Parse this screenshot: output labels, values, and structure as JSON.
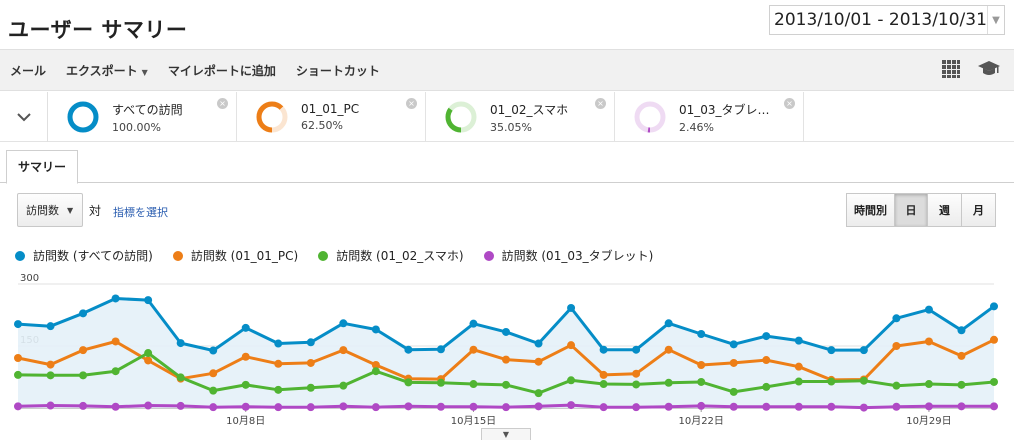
{
  "page": {
    "title": "ユーザー サマリー",
    "date_range": "2013/10/01 - 2013/10/31"
  },
  "toolbar": {
    "email": "メール",
    "export": "エクスポート",
    "add_to_dashboard": "マイレポートに追加",
    "shortcut": "ショートカット",
    "icons": [
      "grid-icon",
      "graduation-cap-icon"
    ]
  },
  "segments": [
    {
      "name": "すべての訪問",
      "percent": "100.00%",
      "color": "#058dc7",
      "ring_fill": 1.0
    },
    {
      "name": "01_01_PC",
      "percent": "62.50%",
      "color": "#ed7e17",
      "ring_fill": 0.625
    },
    {
      "name": "01_02_スマホ",
      "percent": "35.05%",
      "color": "#50b432",
      "ring_fill": 0.3505
    },
    {
      "name": "01_03_タブレ…",
      "percent": "2.46%",
      "color": "#af49c5",
      "ring_fill": 0.0246
    }
  ],
  "tabs": {
    "summary": "サマリー"
  },
  "controls": {
    "metric_select": "訪問数",
    "vs": "対",
    "pick_metric": "指標を選択",
    "granularity": [
      "時間別",
      "日",
      "週",
      "月"
    ],
    "granularity_active": "日"
  },
  "legend": [
    {
      "label": "訪問数 (すべての訪問)",
      "color": "#058dc7"
    },
    {
      "label": "訪問数 (01_01_PC)",
      "color": "#ed7e17"
    },
    {
      "label": "訪問数 (01_02_スマホ)",
      "color": "#50b432"
    },
    {
      "label": "訪問数 (01_03_タブレット)",
      "color": "#af49c5"
    }
  ],
  "chart_data": {
    "type": "line",
    "x": [
      "10/1",
      "10/2",
      "10/3",
      "10/4",
      "10/5",
      "10/6",
      "10/7",
      "10/8",
      "10/9",
      "10/10",
      "10/11",
      "10/12",
      "10/13",
      "10/14",
      "10/15",
      "10/16",
      "10/17",
      "10/18",
      "10/19",
      "10/20",
      "10/21",
      "10/22",
      "10/23",
      "10/24",
      "10/25",
      "10/26",
      "10/27",
      "10/28",
      "10/29",
      "10/30",
      "10/31"
    ],
    "x_tick_labels": [
      {
        "label": "10月8日",
        "index": 7
      },
      {
        "label": "10月15日",
        "index": 14
      },
      {
        "label": "10月22日",
        "index": 21
      },
      {
        "label": "10月29日",
        "index": 28
      }
    ],
    "y_tick_labels": [
      "300",
      "150"
    ],
    "ylim": [
      0,
      300
    ],
    "series": [
      {
        "name": "訪問数 (すべての訪問)",
        "color": "#058dc7",
        "area": true,
        "values": [
          203,
          198,
          229,
          265,
          261,
          157,
          139,
          194,
          156,
          159,
          205,
          190,
          141,
          142,
          204,
          184,
          156,
          242,
          141,
          141,
          205,
          179,
          154,
          174,
          163,
          140,
          140,
          217,
          238,
          188,
          246
        ]
      },
      {
        "name": "訪問数 (01_01_PC)",
        "color": "#ed7e17",
        "values": [
          121,
          105,
          140,
          161,
          115,
          71,
          84,
          124,
          107,
          109,
          140,
          104,
          71,
          70,
          141,
          117,
          112,
          152,
          80,
          83,
          141,
          104,
          109,
          116,
          100,
          68,
          69,
          150,
          161,
          126,
          165
        ]
      },
      {
        "name": "訪問数 (01_02_スマホ)",
        "color": "#50b432",
        "values": [
          80,
          79,
          79,
          89,
          133,
          74,
          42,
          56,
          44,
          49,
          54,
          89,
          62,
          61,
          58,
          56,
          36,
          67,
          58,
          57,
          61,
          63,
          39,
          51,
          64,
          64,
          66,
          54,
          58,
          56,
          63
        ]
      },
      {
        "name": "訪問数 (01_03_タブレット)",
        "color": "#af49c5",
        "values": [
          4,
          6,
          5,
          3,
          6,
          5,
          2,
          3,
          2,
          2,
          4,
          2,
          4,
          3,
          3,
          2,
          4,
          7,
          2,
          2,
          3,
          5,
          3,
          3,
          3,
          3,
          1,
          3,
          4,
          4,
          4
        ]
      }
    ]
  }
}
